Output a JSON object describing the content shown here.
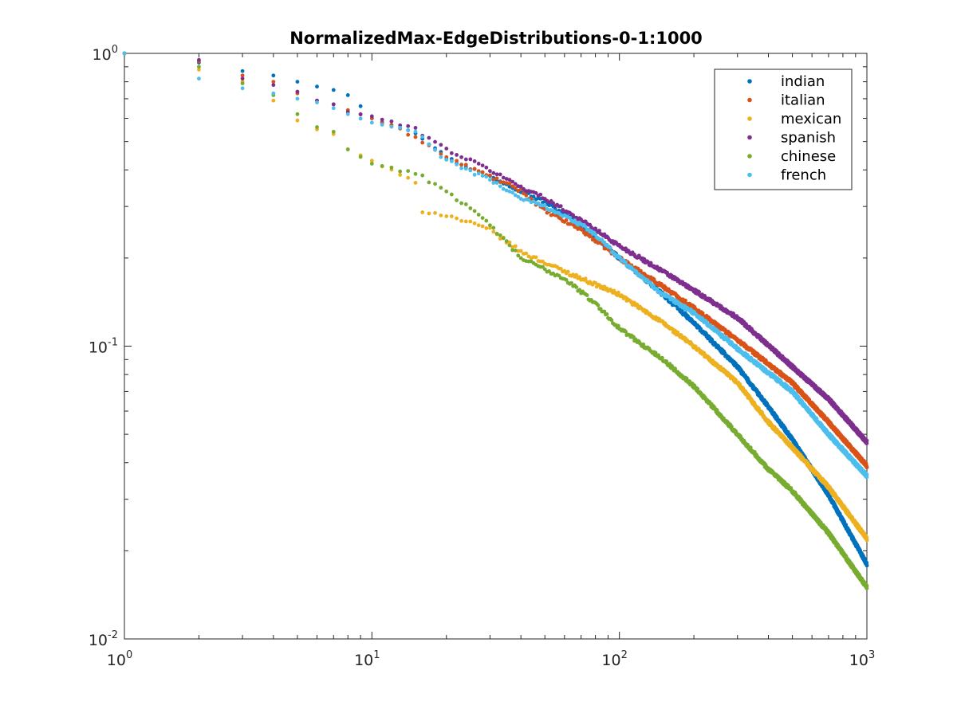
{
  "chart_data": {
    "type": "scatter",
    "title": "NormalizedMax-EdgeDistributions-0-1:1000",
    "xlabel": "",
    "ylabel": "",
    "x_scale": "log",
    "y_scale": "log",
    "xlim": [
      1,
      1000
    ],
    "ylim": [
      0.01,
      1
    ],
    "grid": false,
    "legend_position": "top-right",
    "x_ticks": [
      {
        "base": "10",
        "exp": "0",
        "value": 1
      },
      {
        "base": "10",
        "exp": "1",
        "value": 10
      },
      {
        "base": "10",
        "exp": "2",
        "value": 100
      },
      {
        "base": "10",
        "exp": "3",
        "value": 1000
      }
    ],
    "y_ticks": [
      {
        "base": "10",
        "exp": "-2",
        "value": 0.01
      },
      {
        "base": "10",
        "exp": "-1",
        "value": 0.1
      },
      {
        "base": "10",
        "exp": "0",
        "value": 1
      }
    ],
    "series": [
      {
        "name": "indian",
        "color": "#0072BD",
        "points": [
          [
            1,
            1
          ],
          [
            2,
            0.93
          ],
          [
            3,
            0.87
          ],
          [
            4,
            0.84
          ],
          [
            5,
            0.8
          ],
          [
            6,
            0.77
          ],
          [
            7,
            0.75
          ],
          [
            8,
            0.72
          ],
          [
            9,
            0.66
          ],
          [
            10,
            0.6
          ],
          [
            15,
            0.54
          ],
          [
            20,
            0.44
          ],
          [
            30,
            0.38
          ],
          [
            40,
            0.34
          ],
          [
            50,
            0.31
          ],
          [
            70,
            0.26
          ],
          [
            100,
            0.2
          ],
          [
            150,
            0.15
          ],
          [
            200,
            0.12
          ],
          [
            300,
            0.085
          ],
          [
            400,
            0.062
          ],
          [
            500,
            0.048
          ],
          [
            700,
            0.031
          ],
          [
            1000,
            0.018
          ]
        ]
      },
      {
        "name": "italian",
        "color": "#D95319",
        "points": [
          [
            1,
            1
          ],
          [
            2,
            0.94
          ],
          [
            3,
            0.84
          ],
          [
            4,
            0.8
          ],
          [
            5,
            0.73
          ],
          [
            6,
            0.69
          ],
          [
            7,
            0.67
          ],
          [
            8,
            0.64
          ],
          [
            10,
            0.6
          ],
          [
            15,
            0.52
          ],
          [
            20,
            0.44
          ],
          [
            30,
            0.38
          ],
          [
            40,
            0.34
          ],
          [
            50,
            0.29
          ],
          [
            70,
            0.25
          ],
          [
            100,
            0.2
          ],
          [
            150,
            0.16
          ],
          [
            200,
            0.135
          ],
          [
            300,
            0.105
          ],
          [
            500,
            0.075
          ],
          [
            700,
            0.055
          ],
          [
            1000,
            0.039
          ]
        ]
      },
      {
        "name": "mexican",
        "color": "#EDB120",
        "points": [
          [
            1,
            1
          ],
          [
            2,
            0.88
          ],
          [
            3,
            0.8
          ],
          [
            4,
            0.69
          ],
          [
            5,
            0.59
          ],
          [
            6,
            0.55
          ],
          [
            7,
            0.53
          ],
          [
            8,
            0.47
          ],
          [
            10,
            0.43
          ],
          [
            15,
            0.36
          ],
          [
            16,
            0.29
          ],
          [
            20,
            0.28
          ],
          [
            30,
            0.25
          ],
          [
            40,
            0.21
          ],
          [
            60,
            0.18
          ],
          [
            100,
            0.15
          ],
          [
            150,
            0.12
          ],
          [
            200,
            0.1
          ],
          [
            300,
            0.075
          ],
          [
            400,
            0.055
          ],
          [
            500,
            0.045
          ],
          [
            700,
            0.033
          ],
          [
            1000,
            0.022
          ]
        ]
      },
      {
        "name": "spanish",
        "color": "#7E2F8E",
        "points": [
          [
            1,
            1
          ],
          [
            2,
            0.95
          ],
          [
            3,
            0.82
          ],
          [
            4,
            0.78
          ],
          [
            5,
            0.74
          ],
          [
            6,
            0.69
          ],
          [
            7,
            0.67
          ],
          [
            8,
            0.63
          ],
          [
            10,
            0.61
          ],
          [
            15,
            0.55
          ],
          [
            20,
            0.47
          ],
          [
            30,
            0.4
          ],
          [
            40,
            0.35
          ],
          [
            50,
            0.32
          ],
          [
            70,
            0.27
          ],
          [
            100,
            0.22
          ],
          [
            150,
            0.18
          ],
          [
            200,
            0.155
          ],
          [
            300,
            0.125
          ],
          [
            500,
            0.085
          ],
          [
            700,
            0.066
          ],
          [
            1000,
            0.047
          ]
        ]
      },
      {
        "name": "chinese",
        "color": "#77AC30",
        "points": [
          [
            1,
            1
          ],
          [
            2,
            0.9
          ],
          [
            3,
            0.79
          ],
          [
            4,
            0.72
          ],
          [
            5,
            0.62
          ],
          [
            6,
            0.56
          ],
          [
            7,
            0.54
          ],
          [
            8,
            0.47
          ],
          [
            10,
            0.42
          ],
          [
            15,
            0.39
          ],
          [
            20,
            0.34
          ],
          [
            30,
            0.26
          ],
          [
            40,
            0.2
          ],
          [
            60,
            0.17
          ],
          [
            80,
            0.14
          ],
          [
            100,
            0.115
          ],
          [
            150,
            0.09
          ],
          [
            200,
            0.073
          ],
          [
            300,
            0.05
          ],
          [
            400,
            0.038
          ],
          [
            500,
            0.032
          ],
          [
            700,
            0.023
          ],
          [
            1000,
            0.015
          ]
        ]
      },
      {
        "name": "french",
        "color": "#4DBEEE",
        "points": [
          [
            1,
            1
          ],
          [
            2,
            0.82
          ],
          [
            3,
            0.76
          ],
          [
            4,
            0.73
          ],
          [
            5,
            0.7
          ],
          [
            6,
            0.68
          ],
          [
            7,
            0.65
          ],
          [
            8,
            0.62
          ],
          [
            10,
            0.58
          ],
          [
            15,
            0.54
          ],
          [
            20,
            0.43
          ],
          [
            30,
            0.37
          ],
          [
            40,
            0.32
          ],
          [
            50,
            0.3
          ],
          [
            70,
            0.26
          ],
          [
            80,
            0.24
          ],
          [
            100,
            0.2
          ],
          [
            150,
            0.15
          ],
          [
            200,
            0.13
          ],
          [
            300,
            0.098
          ],
          [
            500,
            0.07
          ],
          [
            700,
            0.05
          ],
          [
            1000,
            0.036
          ]
        ]
      }
    ]
  }
}
